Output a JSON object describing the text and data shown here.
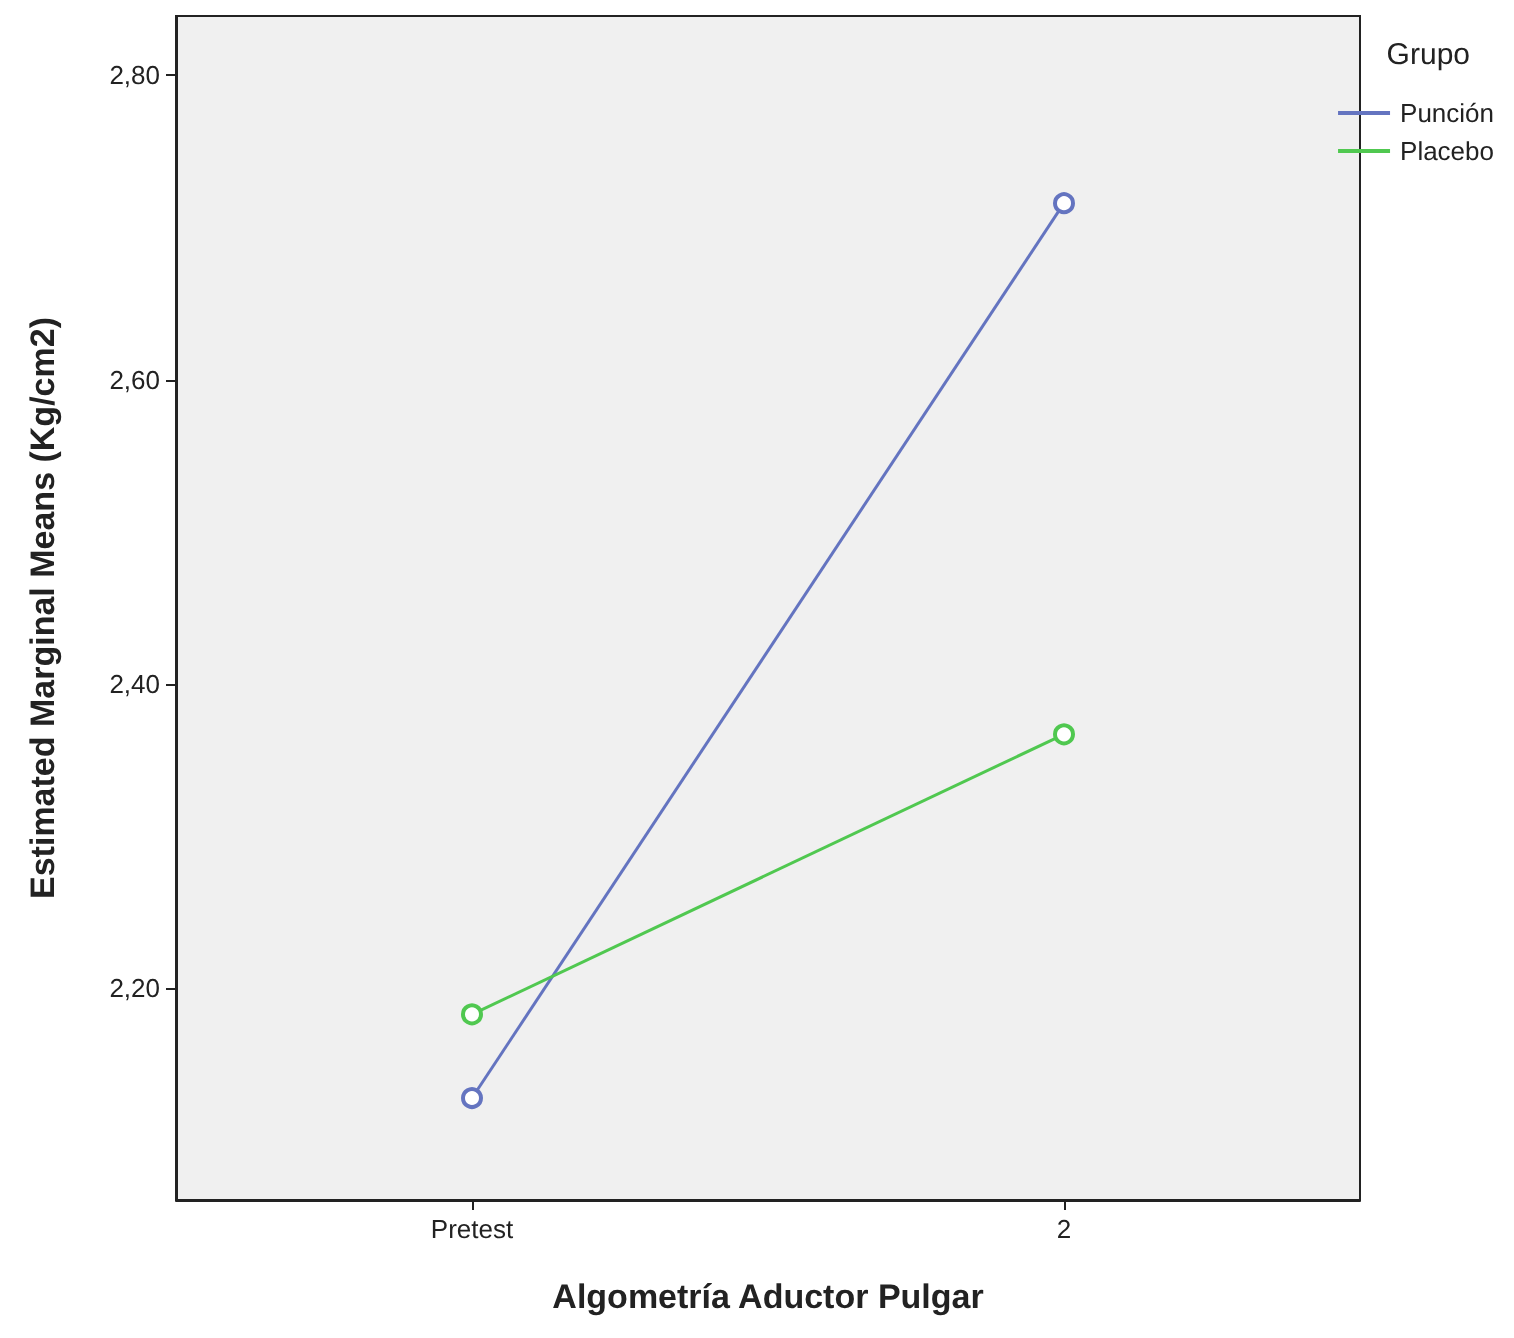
{
  "chart_data": {
    "type": "line",
    "xlabel": "Algometría Aductor Pulgar",
    "ylabel": "Estimated Marginal Means (Kg/cm2)",
    "legend_title": "Grupo",
    "categories": [
      "Pretest",
      "2"
    ],
    "series": [
      {
        "name": "Punción",
        "color": "#6474c0",
        "values": [
          2.128,
          2.716
        ]
      },
      {
        "name": "Placebo",
        "color": "#50c850",
        "values": [
          2.183,
          2.367
        ]
      }
    ],
    "ylim": [
      2.061,
      2.839
    ],
    "yticks": [
      {
        "value": 2.2,
        "label": "2,20"
      },
      {
        "value": 2.4,
        "label": "2,40"
      },
      {
        "value": 2.6,
        "label": "2,60"
      },
      {
        "value": 2.8,
        "label": "2,80"
      }
    ],
    "grid": false,
    "legend": "top right",
    "marker": "circle",
    "line_style": "solid"
  }
}
